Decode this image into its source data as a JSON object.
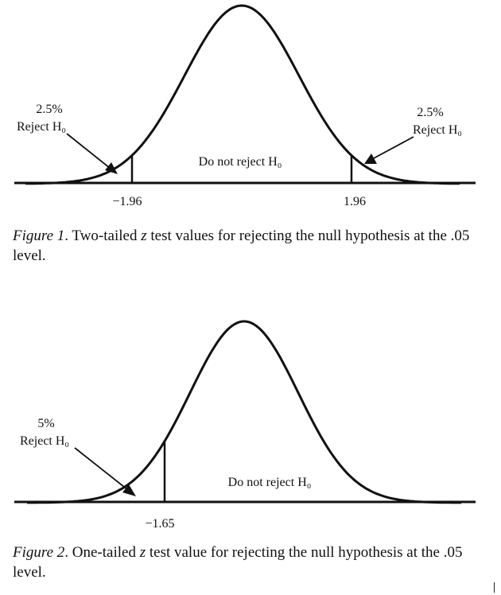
{
  "figure1": {
    "labels": {
      "left_percent": "2.5%",
      "left_reject": "Reject H₀",
      "right_percent": "2.5%",
      "right_reject": "Reject H₀",
      "center": "Do not reject H₀",
      "left_critical": "−1.96",
      "right_critical": "1.96"
    },
    "caption": {
      "number": "Figure 1",
      "text_a": ". Two-tailed ",
      "z": "z",
      "text_b": " test values for rejecting the null hypothesis at the .05 level."
    },
    "critical_z": [
      -1.96,
      1.96
    ]
  },
  "figure2": {
    "labels": {
      "left_percent": "5%",
      "left_reject": "Reject H₀",
      "center": "Do not reject H₀",
      "left_critical": "−1.65"
    },
    "caption": {
      "number": "Figure 2",
      "text_a": ". One-tailed ",
      "z": "z",
      "text_b": " test value for rejecting the null hypothesis at the .05 level."
    },
    "critical_z": [
      -1.65
    ]
  },
  "colors": {
    "ink": "#111111",
    "background": "#ffffff"
  }
}
